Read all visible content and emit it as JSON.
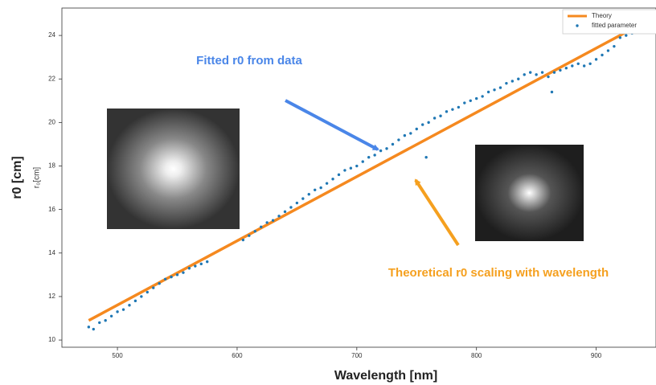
{
  "chart_data": {
    "type": "scatter",
    "xlabel": "Wavelength [nm]",
    "ylabel": "r0 [cm]",
    "ylabel_inner": "r₀[cm]",
    "annotations": [
      "Fitted r0 from data",
      "Theoretical r0 scaling with wavelength"
    ],
    "xlim": [
      453.6,
      950
    ],
    "ylim": [
      9.67,
      25.26
    ],
    "xticks": [
      500,
      600,
      700,
      800,
      900
    ],
    "yticks": [
      10,
      12,
      14,
      16,
      18,
      20,
      22,
      24
    ],
    "legend": "upper right",
    "series": [
      {
        "name": "Theory",
        "type": "line",
        "color": "#f5891f",
        "x": [
          476,
          930
        ],
        "values": [
          10.9,
          24.3
        ]
      },
      {
        "name": "fitted parameter",
        "type": "scatter",
        "color": "#1f77b4",
        "x": [
          476,
          480,
          485,
          490,
          495,
          500,
          505,
          510,
          515,
          520,
          525,
          530,
          535,
          540,
          545,
          550,
          555,
          560,
          565,
          570,
          575,
          605,
          610,
          615,
          620,
          625,
          630,
          635,
          640,
          645,
          650,
          655,
          660,
          665,
          670,
          675,
          680,
          685,
          690,
          695,
          700,
          705,
          710,
          715,
          720,
          725,
          730,
          735,
          740,
          745,
          750,
          755,
          758,
          760,
          765,
          770,
          775,
          780,
          785,
          790,
          795,
          800,
          805,
          810,
          815,
          820,
          825,
          830,
          835,
          840,
          845,
          850,
          855,
          860,
          863,
          865,
          870,
          875,
          880,
          885,
          890,
          895,
          900,
          905,
          910,
          915,
          920,
          925,
          930
        ],
        "values": [
          10.6,
          10.5,
          10.8,
          10.9,
          11.1,
          11.3,
          11.4,
          11.6,
          11.8,
          12.0,
          12.2,
          12.4,
          12.6,
          12.8,
          12.9,
          13.0,
          13.1,
          13.3,
          13.4,
          13.5,
          13.6,
          14.6,
          14.8,
          15.0,
          15.2,
          15.4,
          15.5,
          15.7,
          15.9,
          16.1,
          16.3,
          16.5,
          16.7,
          16.9,
          17.0,
          17.2,
          17.4,
          17.6,
          17.8,
          17.9,
          18.0,
          18.2,
          18.4,
          18.5,
          18.7,
          18.8,
          19.0,
          19.2,
          19.4,
          19.5,
          19.7,
          19.9,
          18.4,
          20.0,
          20.2,
          20.3,
          20.5,
          20.6,
          20.7,
          20.9,
          21.0,
          21.1,
          21.2,
          21.4,
          21.5,
          21.6,
          21.8,
          21.9,
          22.0,
          22.2,
          22.3,
          22.2,
          22.3,
          22.1,
          21.4,
          22.3,
          22.4,
          22.5,
          22.6,
          22.7,
          22.6,
          22.7,
          22.9,
          23.1,
          23.3,
          23.5,
          23.9,
          24.0,
          24.1
        ]
      }
    ]
  }
}
